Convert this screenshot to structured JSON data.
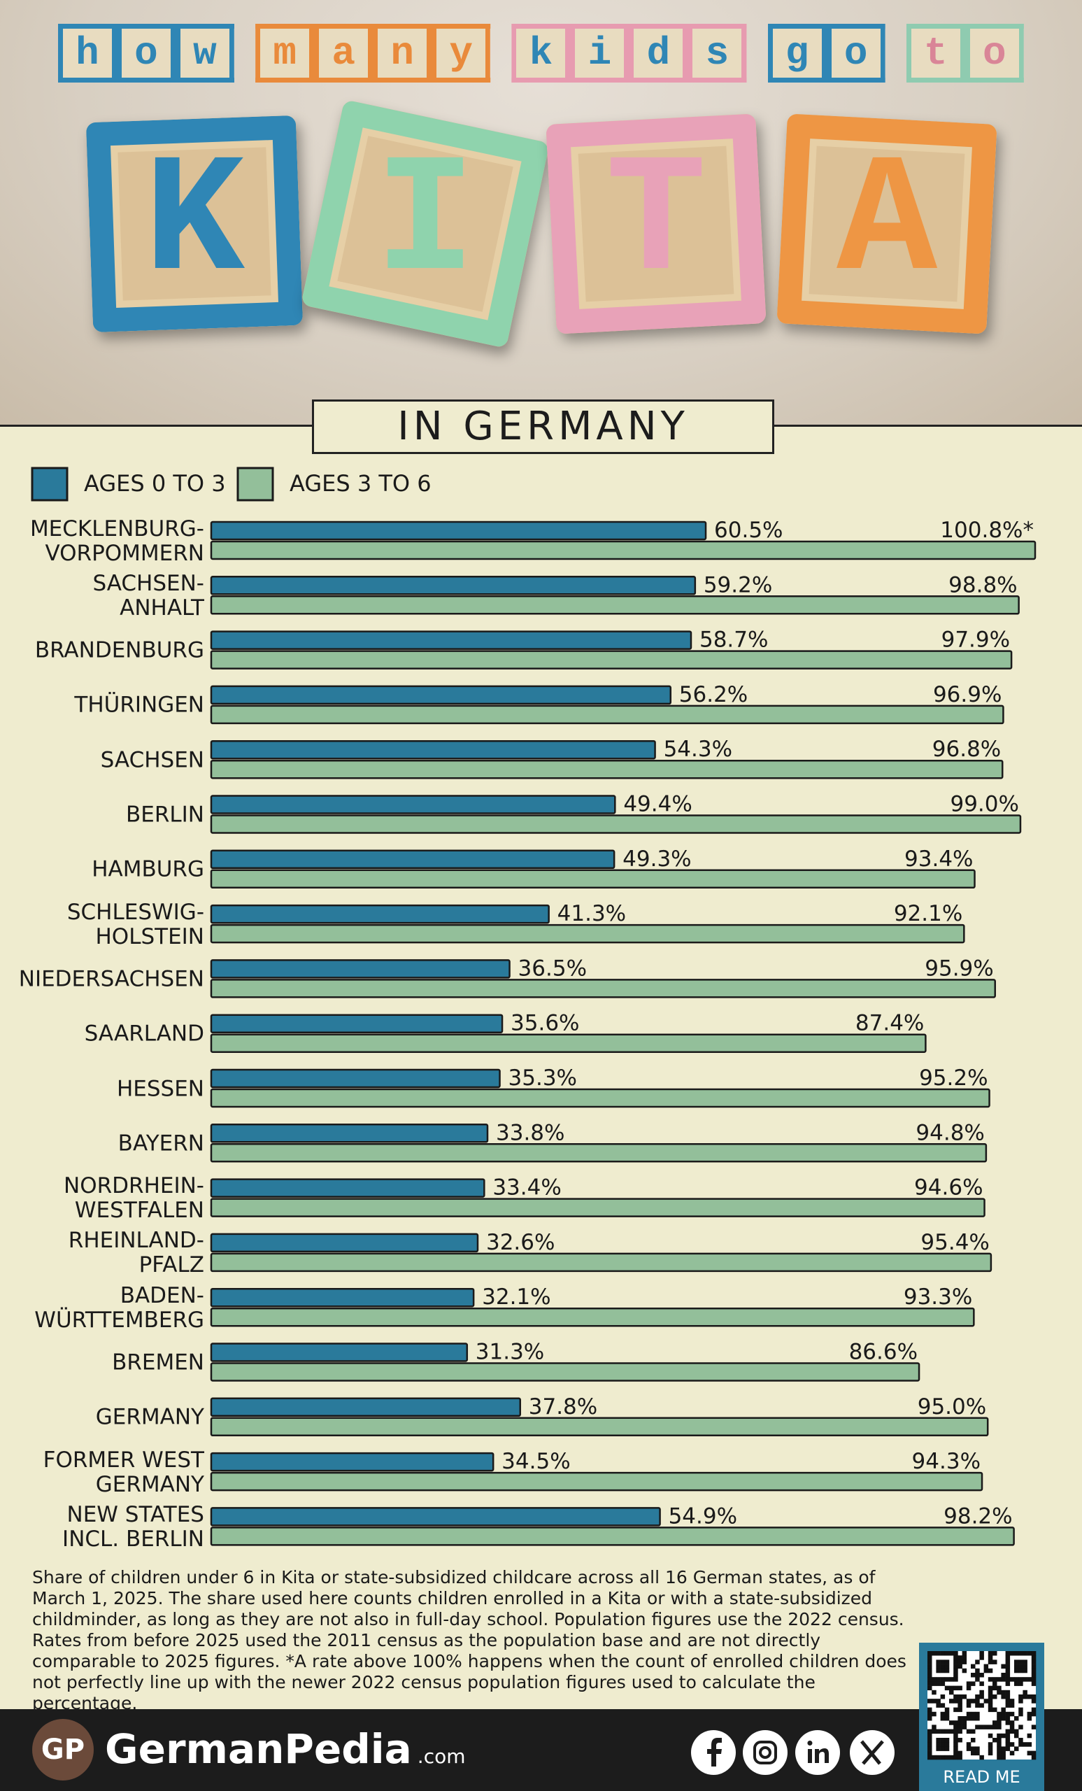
{
  "header": {
    "title_words": [
      "how",
      "many",
      "kids",
      "go",
      "to"
    ],
    "kita": "KITA",
    "subtitle": "IN GERMANY"
  },
  "chart_data": {
    "type": "bar",
    "categories": [
      "MECKLENBURG-\nVORPOMMERN",
      "SACHSEN-\nANHALT",
      "BRANDENBURG",
      "THÜRINGEN",
      "SACHSEN",
      "BERLIN",
      "HAMBURG",
      "SCHLESWIG-\nHOLSTEIN",
      "NIEDERSACHSEN",
      "SAARLAND",
      "HESSEN",
      "BAYERN",
      "NORDRHEIN-\nWESTFALEN",
      "RHEINLAND-\nPFALZ",
      "BADEN-\nWÜRTTEMBERG",
      "BREMEN",
      "GERMANY",
      "FORMER WEST\nGERMANY",
      "NEW STATES\nINCL. BERLIN"
    ],
    "series": [
      {
        "name": "AGES 0 TO 3",
        "color": "#2a7a9b",
        "values": [
          60.5,
          59.2,
          58.7,
          56.2,
          54.3,
          49.4,
          49.3,
          41.3,
          36.5,
          35.6,
          35.3,
          33.8,
          33.4,
          32.6,
          32.1,
          31.3,
          37.8,
          34.5,
          54.9
        ],
        "value_labels": [
          "60.5%",
          "59.2%",
          "58.7%",
          "56.2%",
          "54.3%",
          "49.4%",
          "49.3%",
          "41.3%",
          "36.5%",
          "35.6%",
          "35.3%",
          "33.8%",
          "33.4%",
          "32.6%",
          "32.1%",
          "31.3%",
          "37.8%",
          "34.5%",
          "54.9%"
        ]
      },
      {
        "name": "AGES 3 TO 6",
        "color": "#93bf9a",
        "values": [
          100.8,
          98.8,
          97.9,
          96.9,
          96.8,
          99.0,
          93.4,
          92.1,
          95.9,
          87.4,
          95.2,
          94.8,
          94.6,
          95.4,
          93.3,
          86.6,
          95.0,
          94.3,
          98.2
        ],
        "value_labels": [
          "100.8%*",
          "98.8%",
          "97.9%",
          "96.9%",
          "96.8%",
          "99.0%",
          "93.4%",
          "92.1%",
          "95.9%",
          "87.4%",
          "95.2%",
          "94.8%",
          "94.6%",
          "95.4%",
          "93.3%",
          "86.6%",
          "95.0%",
          "94.3%",
          "98.2%"
        ]
      }
    ]
  },
  "footnote": "Share of children under 6 in Kita or state-subsidized childcare across all 16 German states, as of March 1, 2025. The share used here counts children enrolled in a Kita or with a state-subsidized childminder, as long as they are not also in full-day school. Population figures use the 2022 census. Rates from before 2025 used the 2011 census as the population base and are not directly comparable to 2025 figures. *A rate above 100% happens when the count of enrolled children does not perfectly line up with the newer 2022 census population figures used to calculate the percentage.",
  "footer": {
    "logo": "GP",
    "brand": "GermanPedia",
    "domain": ".com",
    "qr_label": "READ ME"
  }
}
